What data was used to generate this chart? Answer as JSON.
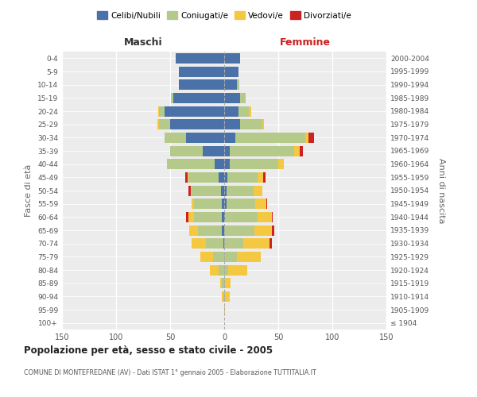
{
  "age_groups": [
    "100+",
    "95-99",
    "90-94",
    "85-89",
    "80-84",
    "75-79",
    "70-74",
    "65-69",
    "60-64",
    "55-59",
    "50-54",
    "45-49",
    "40-44",
    "35-39",
    "30-34",
    "25-29",
    "20-24",
    "15-19",
    "10-14",
    "5-9",
    "0-4"
  ],
  "birth_years": [
    "≤ 1904",
    "1905-1909",
    "1910-1914",
    "1915-1919",
    "1920-1924",
    "1925-1929",
    "1930-1934",
    "1935-1939",
    "1940-1944",
    "1945-1949",
    "1950-1954",
    "1955-1959",
    "1960-1964",
    "1965-1969",
    "1970-1974",
    "1975-1979",
    "1980-1984",
    "1985-1989",
    "1990-1994",
    "1995-1999",
    "2000-2004"
  ],
  "maschi_celibi": [
    0,
    0,
    0,
    0,
    0,
    0,
    1,
    2,
    2,
    2,
    3,
    5,
    9,
    20,
    35,
    50,
    55,
    47,
    42,
    42,
    45
  ],
  "maschi_coniugati": [
    0,
    0,
    1,
    2,
    5,
    10,
    16,
    22,
    26,
    26,
    27,
    28,
    44,
    30,
    20,
    10,
    5,
    2,
    0,
    0,
    0
  ],
  "maschi_vedovi": [
    0,
    0,
    1,
    2,
    8,
    12,
    13,
    8,
    5,
    2,
    1,
    1,
    0,
    0,
    0,
    2,
    1,
    0,
    0,
    0,
    0
  ],
  "maschi_divorziati": [
    0,
    0,
    0,
    0,
    0,
    0,
    0,
    0,
    2,
    0,
    2,
    2,
    0,
    0,
    0,
    0,
    0,
    0,
    0,
    0,
    0
  ],
  "femmine_nubili": [
    0,
    0,
    0,
    0,
    0,
    0,
    0,
    0,
    1,
    2,
    2,
    3,
    5,
    5,
    10,
    15,
    13,
    15,
    12,
    13,
    15
  ],
  "femmine_coniugate": [
    0,
    0,
    1,
    1,
    4,
    12,
    18,
    28,
    30,
    27,
    25,
    28,
    45,
    60,
    65,
    20,
    10,
    5,
    2,
    0,
    0
  ],
  "femmine_vedove": [
    0,
    1,
    4,
    5,
    17,
    22,
    24,
    16,
    13,
    10,
    8,
    5,
    5,
    5,
    3,
    2,
    2,
    0,
    0,
    0,
    0
  ],
  "femmine_divorziate": [
    0,
    0,
    0,
    0,
    0,
    0,
    2,
    2,
    1,
    1,
    0,
    2,
    0,
    3,
    5,
    0,
    0,
    0,
    0,
    0,
    0
  ],
  "color_celibi": "#4a72a8",
  "color_coniugati": "#b5c98b",
  "color_vedovi": "#f5c842",
  "color_divorziati": "#cc2222",
  "xlim": 150,
  "title": "Popolazione per età, sesso e stato civile - 2005",
  "subtitle": "COMUNE DI MONTEFREDANE (AV) - Dati ISTAT 1° gennaio 2005 - Elaborazione TUTTITALIA.IT",
  "ylabel_left": "Fasce di età",
  "ylabel_right": "Anni di nascita",
  "label_maschi": "Maschi",
  "label_femmine": "Femmine",
  "bg_color": "#ffffff",
  "plot_bg": "#ececec"
}
